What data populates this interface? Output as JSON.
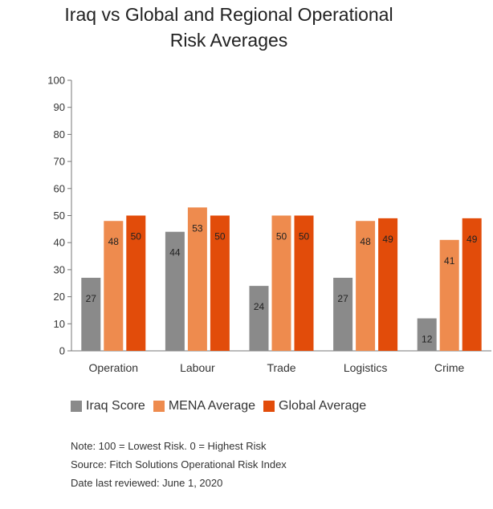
{
  "chart_data": {
    "type": "bar",
    "title_lines": [
      "Iraq vs Global and Regional Operational",
      "Risk Averages"
    ],
    "categories": [
      "Operation",
      "Labour",
      "Trade",
      "Logistics",
      "Crime"
    ],
    "series": [
      {
        "name": "Iraq Score",
        "color": "#8a8a8a",
        "values": [
          27,
          44,
          24,
          27,
          12
        ],
        "labels": [
          "27",
          "44",
          "24",
          "27",
          "12"
        ]
      },
      {
        "name": "MENA Average",
        "color": "#ee8b4e",
        "values": [
          48,
          53,
          50,
          48,
          41
        ],
        "labels": [
          "48",
          "53",
          "50",
          "48",
          "41"
        ]
      },
      {
        "name": "Global Average",
        "color": "#e24c0a",
        "values": [
          50,
          50,
          50,
          49,
          49
        ],
        "labels": [
          "50",
          "50",
          "50",
          "49",
          "49"
        ]
      }
    ],
    "ylim": [
      0,
      100
    ],
    "yticks": [
      "0",
      "10",
      "20",
      "30",
      "40",
      "50",
      "60",
      "70",
      "80",
      "90",
      "100"
    ],
    "grid": false,
    "legend_position": "bottom-left"
  },
  "notes": [
    "Note: 100 = Lowest Risk. 0 = Highest Risk",
    "Source: Fitch Solutions Operational Risk Index",
    "Date last reviewed: June 1, 2020"
  ]
}
